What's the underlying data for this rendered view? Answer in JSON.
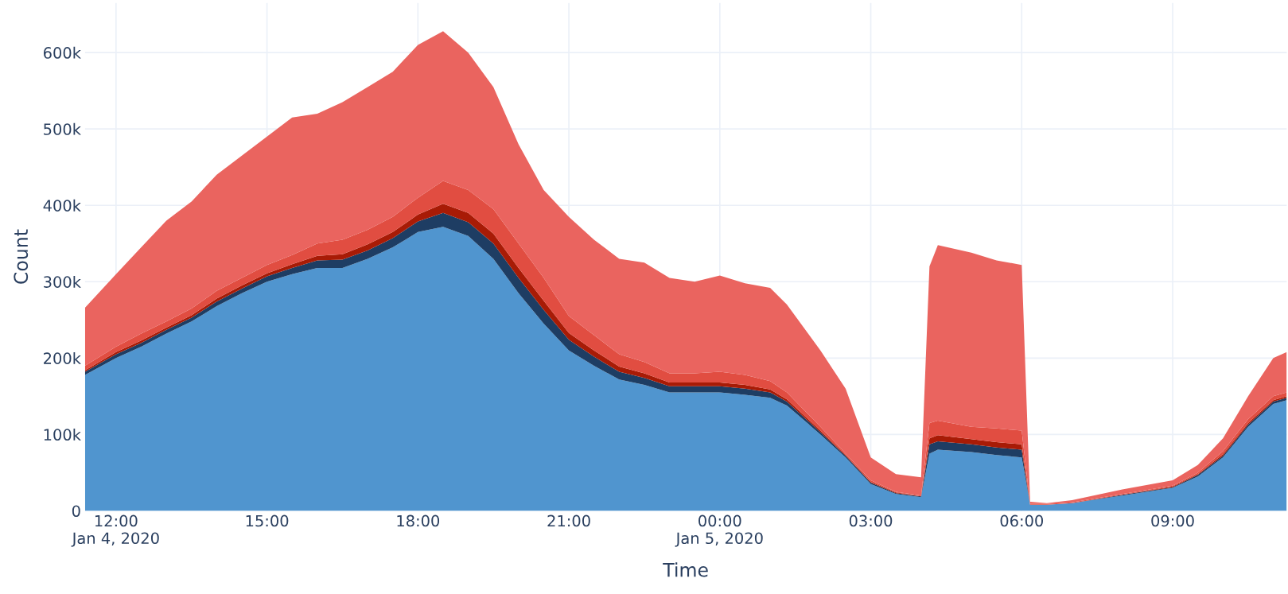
{
  "chart_data": {
    "type": "area",
    "stacked": true,
    "xlabel": "Time",
    "ylabel": "Count",
    "grid": true,
    "legend": false,
    "x": [
      "2020-01-04T11:23",
      "2020-01-04T12:00",
      "2020-01-04T12:30",
      "2020-01-04T13:00",
      "2020-01-04T13:30",
      "2020-01-04T14:00",
      "2020-01-04T14:30",
      "2020-01-04T15:00",
      "2020-01-04T15:30",
      "2020-01-04T16:00",
      "2020-01-04T16:30",
      "2020-01-04T17:00",
      "2020-01-04T17:30",
      "2020-01-04T18:00",
      "2020-01-04T18:30",
      "2020-01-04T19:00",
      "2020-01-04T19:30",
      "2020-01-04T20:00",
      "2020-01-04T20:30",
      "2020-01-04T21:00",
      "2020-01-04T21:30",
      "2020-01-04T22:00",
      "2020-01-04T22:30",
      "2020-01-04T23:00",
      "2020-01-04T23:30",
      "2020-01-05T00:00",
      "2020-01-05T00:30",
      "2020-01-05T01:00",
      "2020-01-05T01:20",
      "2020-01-05T02:00",
      "2020-01-05T02:30",
      "2020-01-05T03:00",
      "2020-01-05T03:30",
      "2020-01-05T04:00",
      "2020-01-05T04:10",
      "2020-01-05T04:20",
      "2020-01-05T05:00",
      "2020-01-05T05:30",
      "2020-01-05T06:00",
      "2020-01-05T06:10",
      "2020-01-05T06:30",
      "2020-01-05T07:00",
      "2020-01-05T08:00",
      "2020-01-05T09:00",
      "2020-01-05T09:30",
      "2020-01-05T10:00",
      "2020-01-05T10:30",
      "2020-01-05T11:00",
      "2020-01-05T11:16"
    ],
    "series": [
      {
        "color": "#5095cf",
        "values": [
          178000,
          200000,
          215000,
          232000,
          248000,
          268000,
          285000,
          300000,
          310000,
          318000,
          318000,
          330000,
          345000,
          365000,
          372000,
          360000,
          330000,
          285000,
          245000,
          210000,
          190000,
          172000,
          165000,
          155000,
          155000,
          155000,
          152000,
          148000,
          138000,
          100000,
          70000,
          35000,
          22000,
          18000,
          75000,
          80000,
          77000,
          73000,
          70000,
          8000,
          8000,
          10000,
          20000,
          30000,
          45000,
          70000,
          110000,
          140000,
          145000
        ]
      },
      {
        "color": "#1e3d63",
        "values": [
          4000,
          5000,
          5000,
          5000,
          5000,
          6000,
          6000,
          7000,
          8000,
          10000,
          11000,
          11000,
          12000,
          14000,
          18000,
          18000,
          20000,
          20000,
          18000,
          14000,
          12000,
          10000,
          9000,
          8000,
          8000,
          8000,
          8000,
          7000,
          5000,
          3000,
          2000,
          2000,
          1000,
          1000,
          12000,
          11000,
          10000,
          10000,
          10000,
          0,
          0,
          0,
          1000,
          1000,
          2000,
          2000,
          3000,
          3000,
          3000
        ]
      },
      {
        "color": "#a81b06",
        "values": [
          2000,
          3000,
          3000,
          3000,
          3000,
          4000,
          4000,
          4000,
          5000,
          6000,
          7000,
          8000,
          8000,
          9000,
          12000,
          12000,
          13000,
          13000,
          12000,
          9000,
          8000,
          7000,
          6000,
          5000,
          5000,
          5000,
          5000,
          4000,
          3000,
          2000,
          1000,
          1000,
          1000,
          0,
          8000,
          8000,
          7000,
          7000,
          7000,
          0,
          0,
          0,
          0,
          1000,
          1000,
          2000,
          2000,
          2000,
          2000
        ]
      },
      {
        "color": "#e14d41",
        "values": [
          6000,
          7000,
          9000,
          8000,
          9000,
          10000,
          10000,
          11000,
          12000,
          16000,
          19000,
          19000,
          20000,
          22000,
          30000,
          30000,
          32000,
          32000,
          30000,
          22000,
          20000,
          16000,
          15000,
          12000,
          12000,
          14000,
          13000,
          11000,
          9000,
          5000,
          2000,
          2000,
          1000,
          1000,
          20000,
          19000,
          16000,
          18000,
          18000,
          1000,
          1000,
          1000,
          1000,
          1000,
          2000,
          4000,
          5000,
          5000,
          5000
        ]
      },
      {
        "color": "#ea645f",
        "values": [
          76000,
          95000,
          113000,
          132000,
          140000,
          152000,
          160000,
          168000,
          180000,
          170000,
          180000,
          187000,
          190000,
          200000,
          196000,
          180000,
          160000,
          130000,
          115000,
          130000,
          125000,
          125000,
          130000,
          125000,
          120000,
          126000,
          120000,
          122000,
          115000,
          100000,
          85000,
          30000,
          23000,
          24000,
          205000,
          230000,
          228000,
          220000,
          217000,
          3000,
          1000,
          3000,
          6000,
          7000,
          10000,
          17000,
          30000,
          50000,
          53000
        ]
      }
    ],
    "xlim": [
      "2020-01-04T11:23",
      "2020-01-05T11:16"
    ],
    "xticks": [
      {
        "value": "2020-01-04T12:00",
        "label": "12:00\nJan 4, 2020"
      },
      {
        "value": "2020-01-04T15:00",
        "label": "15:00"
      },
      {
        "value": "2020-01-04T18:00",
        "label": "18:00"
      },
      {
        "value": "2020-01-04T21:00",
        "label": "21:00"
      },
      {
        "value": "2020-01-05T00:00",
        "label": "00:00\nJan 5, 2020"
      },
      {
        "value": "2020-01-05T03:00",
        "label": "03:00"
      },
      {
        "value": "2020-01-05T06:00",
        "label": "06:00"
      },
      {
        "value": "2020-01-05T09:00",
        "label": "09:00"
      }
    ],
    "ylim": [
      0,
      665000
    ],
    "yticks": [
      {
        "value": 0,
        "label": "0"
      },
      {
        "value": 100000,
        "label": "100k"
      },
      {
        "value": 200000,
        "label": "200k"
      },
      {
        "value": 300000,
        "label": "300k"
      },
      {
        "value": 400000,
        "label": "400k"
      },
      {
        "value": 500000,
        "label": "500k"
      },
      {
        "value": 600000,
        "label": "600k"
      }
    ]
  }
}
